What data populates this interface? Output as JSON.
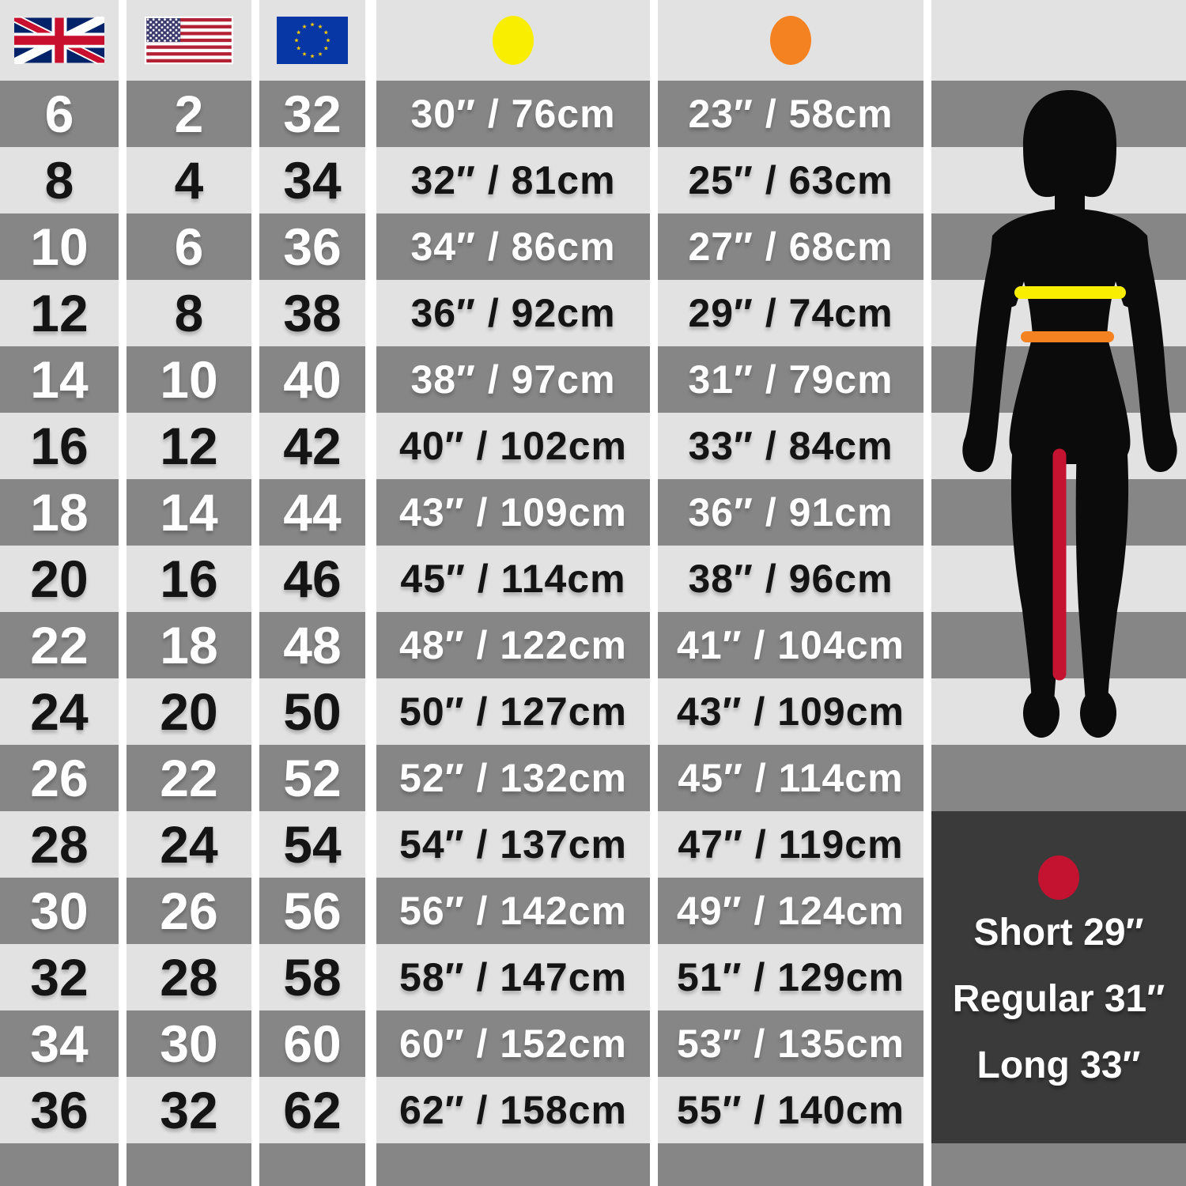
{
  "chart_data": {
    "type": "table",
    "title": "Women's clothing size conversion and body measurement chart",
    "columns": [
      "UK",
      "US",
      "EU",
      "Bust (yellow marker)",
      "Waist (orange marker)"
    ],
    "rows": [
      {
        "uk": "6",
        "us": "2",
        "eu": "32",
        "bust": "30″ / 76cm",
        "waist": "23″ / 58cm"
      },
      {
        "uk": "8",
        "us": "4",
        "eu": "34",
        "bust": "32″ / 81cm",
        "waist": "25″ / 63cm"
      },
      {
        "uk": "10",
        "us": "6",
        "eu": "36",
        "bust": "34″ / 86cm",
        "waist": "27″ / 68cm"
      },
      {
        "uk": "12",
        "us": "8",
        "eu": "38",
        "bust": "36″ / 92cm",
        "waist": "29″ / 74cm"
      },
      {
        "uk": "14",
        "us": "10",
        "eu": "40",
        "bust": "38″ / 97cm",
        "waist": "31″ / 79cm"
      },
      {
        "uk": "16",
        "us": "12",
        "eu": "42",
        "bust": "40″ / 102cm",
        "waist": "33″ / 84cm"
      },
      {
        "uk": "18",
        "us": "14",
        "eu": "44",
        "bust": "43″ / 109cm",
        "waist": "36″ / 91cm"
      },
      {
        "uk": "20",
        "us": "16",
        "eu": "46",
        "bust": "45″ / 114cm",
        "waist": "38″ / 96cm"
      },
      {
        "uk": "22",
        "us": "18",
        "eu": "48",
        "bust": "48″ / 122cm",
        "waist": "41″ / 104cm"
      },
      {
        "uk": "24",
        "us": "20",
        "eu": "50",
        "bust": "50″ / 127cm",
        "waist": "43″ / 109cm"
      },
      {
        "uk": "26",
        "us": "22",
        "eu": "52",
        "bust": "52″ / 132cm",
        "waist": "45″ / 114cm"
      },
      {
        "uk": "28",
        "us": "24",
        "eu": "54",
        "bust": "54″ / 137cm",
        "waist": "47″ / 119cm"
      },
      {
        "uk": "30",
        "us": "26",
        "eu": "56",
        "bust": "56″ / 142cm",
        "waist": "49″ / 124cm"
      },
      {
        "uk": "32",
        "us": "28",
        "eu": "58",
        "bust": "58″ / 147cm",
        "waist": "51″ / 129cm"
      },
      {
        "uk": "34",
        "us": "30",
        "eu": "60",
        "bust": "60″ / 152cm",
        "waist": "53″ / 135cm"
      },
      {
        "uk": "36",
        "us": "32",
        "eu": "62",
        "bust": "62″ / 158cm",
        "waist": "55″ / 140cm"
      }
    ]
  },
  "header": {
    "uk_flag": "uk-flag",
    "us_flag": "us-flag",
    "eu_flag": "eu-flag",
    "bust_marker": "yellow-dot",
    "waist_marker": "orange-dot"
  },
  "inseam_panel": {
    "marker": "red-dot",
    "lines": [
      "Short 29″",
      "Regular 31″",
      "Long 33″"
    ]
  },
  "colors": {
    "row_dark": "#868686",
    "row_light": "#e2e2e2",
    "panel_dark": "#3a3a3a",
    "bust_yellow": "#f9ee00",
    "waist_orange": "#f58220",
    "inseam_red": "#c41331",
    "silhouette_black": "#0b0b0b"
  }
}
